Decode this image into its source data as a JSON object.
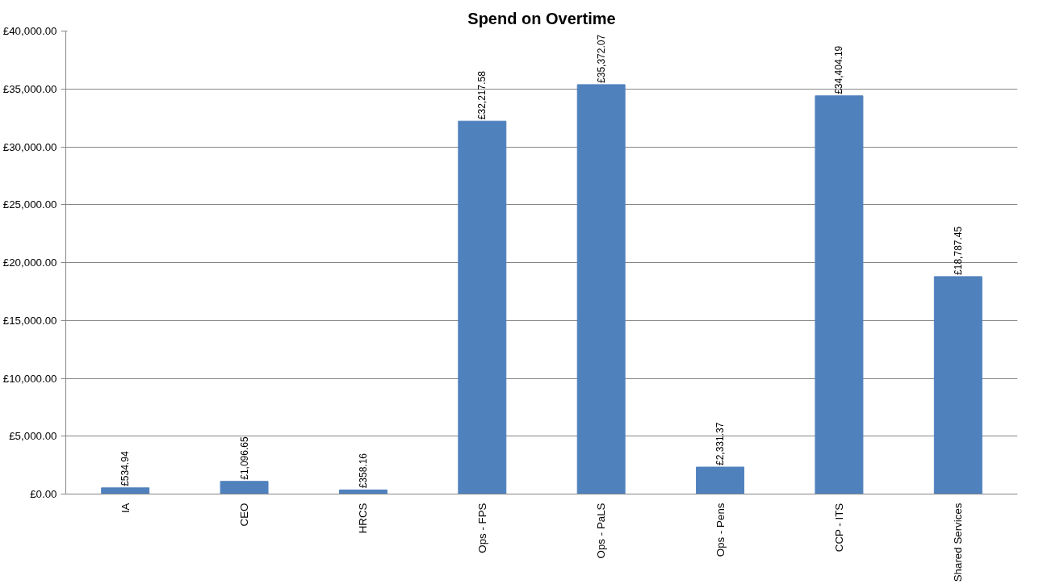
{
  "chart_data": {
    "type": "bar",
    "title": "Spend on Overtime",
    "categories": [
      "IA",
      "CEO",
      "HRCS",
      "Ops - FPS",
      "Ops - PaLS",
      "Ops - Pens",
      "CCP - ITS",
      "Shared Services"
    ],
    "values": [
      534.94,
      1096.65,
      358.16,
      32217.58,
      35372.07,
      2331.37,
      34404.19,
      18787.45
    ],
    "value_labels": [
      "£534.94",
      "£1,096.65",
      "£358.16",
      "£32,217.58",
      "£35,372.07",
      "£2,331.37",
      "£34,404.19",
      "£18,787.45"
    ],
    "color": "#4f81bd",
    "ylim": [
      0,
      40000
    ],
    "yticks": [
      {
        "value": 0,
        "label": "£0.00"
      },
      {
        "value": 5000,
        "label": "£5,000.00"
      },
      {
        "value": 10000,
        "label": "£10,000.00"
      },
      {
        "value": 15000,
        "label": "£15,000.00"
      },
      {
        "value": 20000,
        "label": "£20,000.00"
      },
      {
        "value": 25000,
        "label": "£25,000.00"
      },
      {
        "value": 30000,
        "label": "£30,000.00"
      },
      {
        "value": 35000,
        "label": "£35,000.00"
      },
      {
        "value": 40000,
        "label": "£40,000.00"
      }
    ],
    "grid": "y"
  }
}
